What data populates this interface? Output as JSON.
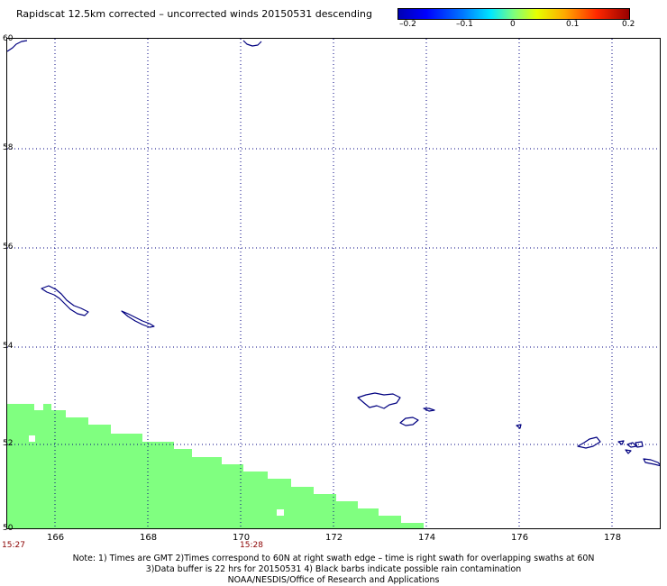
{
  "header": {
    "title": "Rapidscat 12.5km corrected – uncorrected winds 20150531 descending"
  },
  "colorbar": {
    "ticks": [
      "–0.2",
      "–0.1",
      "0",
      "0.1",
      "0.2"
    ],
    "values": [
      -0.2,
      -0.1,
      0,
      0.1,
      0.2
    ]
  },
  "map": {
    "lat_labels": [
      "60",
      "58",
      "56",
      "54",
      "52",
      "50"
    ],
    "lon_labels": [
      "166",
      "168",
      "170",
      "172",
      "174",
      "176",
      "178"
    ],
    "lat_range": [
      50,
      60
    ],
    "lon_range": [
      165,
      179.2
    ],
    "grid_lines": "dotted",
    "coastline_color": "#000080",
    "swath_color": "#80ff80"
  },
  "times": {
    "t1": "15:27",
    "t2": "15:28"
  },
  "notes": {
    "line1": "Note: 1) Times are GMT 2)Times correspond to 60N at right swath edge – time is right swath for overlapping swaths at 60N",
    "line2": "3)Data buffer is 22 hrs for 20150531 4) Black barbs indicate possible rain contamination",
    "line3": "NOAA/NESDIS/Office of Research and Applications"
  }
}
